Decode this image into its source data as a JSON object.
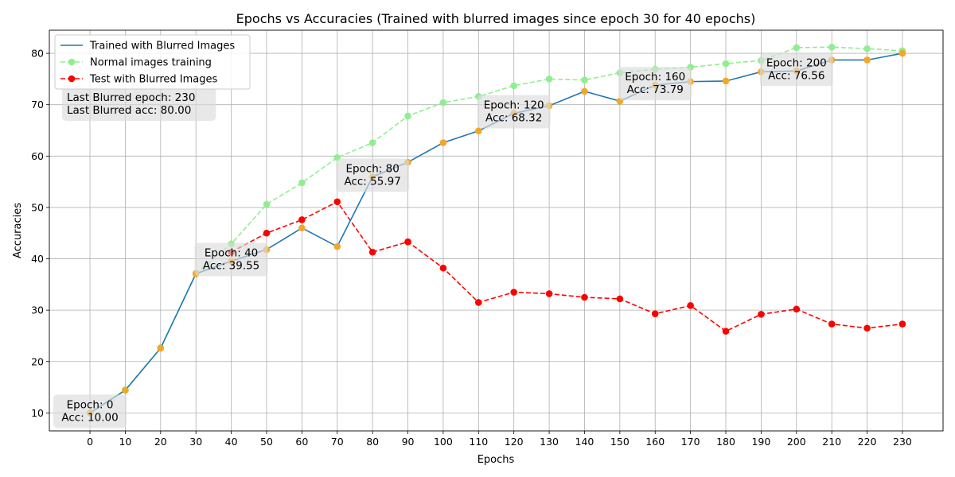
{
  "chart_data": {
    "type": "line",
    "title": "Epochs vs Accuracies (Trained with blurred images since epoch 30 for 40 epochs)",
    "xlabel": "Epochs",
    "ylabel": "Accuracies",
    "x_ticks": [
      0,
      10,
      20,
      30,
      40,
      50,
      60,
      70,
      80,
      90,
      100,
      110,
      120,
      130,
      140,
      150,
      160,
      170,
      180,
      190,
      200,
      210,
      220,
      230
    ],
    "y_ticks": [
      10,
      20,
      30,
      40,
      50,
      60,
      70,
      80
    ],
    "xlim": [
      -11.5,
      241.5
    ],
    "ylim": [
      6.5,
      84.5
    ],
    "grid": true,
    "legend_position": "top-left",
    "series": [
      {
        "name": "Trained with Blurred Images",
        "color": "#1f77b4",
        "marker_color": "#f5a623",
        "style": "solid",
        "x": [
          0,
          10,
          20,
          30,
          40,
          50,
          60,
          70,
          80,
          90,
          100,
          110,
          120,
          130,
          140,
          150,
          160,
          170,
          180,
          190,
          200,
          210,
          220,
          230
        ],
        "y": [
          10.0,
          14.4,
          22.6,
          37.1,
          39.55,
          41.8,
          46.0,
          42.4,
          55.97,
          58.8,
          62.6,
          64.9,
          68.32,
          69.8,
          72.6,
          70.7,
          73.79,
          74.5,
          74.6,
          76.4,
          76.56,
          78.7,
          78.7,
          80.0
        ]
      },
      {
        "name": "Normal images training",
        "color": "#90ee90",
        "marker_color": "#90ee90",
        "style": "dashed",
        "x": [
          0,
          10,
          20,
          30,
          40,
          50,
          60,
          70,
          80,
          90,
          100,
          110,
          120,
          130,
          140,
          150,
          160,
          170,
          180,
          190,
          200,
          210,
          220,
          230
        ],
        "y": [
          10.0,
          14.5,
          22.7,
          37.2,
          42.9,
          50.6,
          54.8,
          59.7,
          62.6,
          67.8,
          70.4,
          71.6,
          73.7,
          75.0,
          74.8,
          76.2,
          76.9,
          77.3,
          78.0,
          78.6,
          81.1,
          81.2,
          80.9,
          80.5
        ]
      },
      {
        "name": "Test with Blurred Images",
        "color": "#ff0000",
        "marker_color": "#ff0000",
        "style": "dashed",
        "x": [
          40,
          50,
          60,
          70,
          80,
          90,
          100,
          110,
          120,
          130,
          140,
          150,
          160,
          170,
          180,
          190,
          200,
          210,
          220,
          230
        ],
        "y": [
          41.3,
          45.0,
          47.6,
          51.1,
          41.3,
          43.3,
          38.2,
          31.5,
          33.5,
          33.2,
          32.5,
          32.2,
          29.3,
          30.9,
          25.9,
          29.2,
          30.2,
          27.3,
          26.5,
          27.3
        ]
      }
    ],
    "annotations": [
      {
        "lines": [
          "Epoch: 0",
          "Acc: 10.00"
        ],
        "x": 0,
        "y": 10.0,
        "box": "center"
      },
      {
        "lines": [
          "Epoch: 40",
          "Acc: 39.55"
        ],
        "x": 40,
        "y": 39.55,
        "box": "center"
      },
      {
        "lines": [
          "Epoch: 80",
          "Acc: 55.97"
        ],
        "x": 80,
        "y": 55.97,
        "box": "center"
      },
      {
        "lines": [
          "Epoch: 120",
          "Acc: 68.32"
        ],
        "x": 120,
        "y": 68.32,
        "box": "center"
      },
      {
        "lines": [
          "Epoch: 160",
          "Acc: 73.79"
        ],
        "x": 160,
        "y": 73.79,
        "box": "center"
      },
      {
        "lines": [
          "Epoch: 200",
          "Acc: 76.56"
        ],
        "x": 200,
        "y": 76.56,
        "box": "center"
      },
      {
        "lines": [
          "Last Blurred epoch: 230",
          "Last Blurred acc: 80.00"
        ],
        "x": 0,
        "y": 70.0,
        "box": "left"
      }
    ]
  }
}
